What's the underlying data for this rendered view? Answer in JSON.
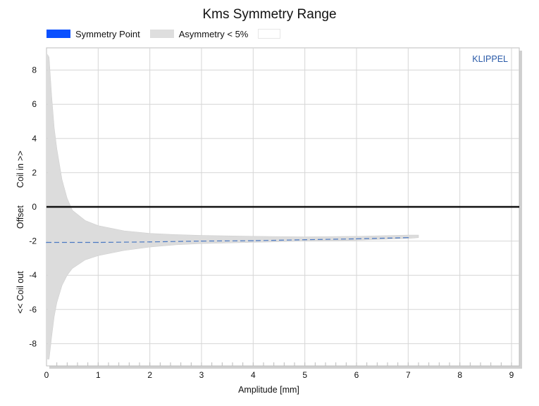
{
  "chart_data": {
    "type": "area",
    "title": "Kms Symmetry Range",
    "brand": "KLIPPEL",
    "xlabel": "Amplitude [mm]",
    "ylabel_parts": [
      "Coil in >>",
      "Offset",
      "<< Coil out"
    ],
    "xlim": [
      0,
      9.15
    ],
    "ylim": [
      -9.3,
      9.3
    ],
    "x_ticks": [
      0,
      1,
      2,
      3,
      4,
      5,
      6,
      7,
      8,
      9
    ],
    "y_ticks": [
      8,
      6,
      4,
      2,
      0,
      -2,
      -4,
      -6,
      -8
    ],
    "grid": true,
    "legend_position": "top-left",
    "legend": [
      {
        "label": "Symmetry Point",
        "color": "#0a50ff"
      },
      {
        "label": "Asymmetry < 5%",
        "color": "#dedede"
      },
      {
        "label": "",
        "color": "#ffffff"
      }
    ],
    "zero_line": 0,
    "series": [
      {
        "name": "Asymmetry < 5%",
        "kind": "band",
        "x": [
          0.02,
          0.05,
          0.1,
          0.15,
          0.2,
          0.3,
          0.4,
          0.5,
          0.75,
          1.0,
          1.5,
          2.0,
          2.5,
          3.0,
          4.0,
          5.0,
          6.0,
          7.0,
          7.2
        ],
        "upper": [
          8.9,
          8.75,
          6.5,
          4.6,
          3.4,
          1.6,
          0.5,
          -0.2,
          -0.8,
          -1.1,
          -1.4,
          -1.55,
          -1.62,
          -1.67,
          -1.72,
          -1.75,
          -1.72,
          -1.65,
          -1.65
        ],
        "lower": [
          -8.9,
          -8.9,
          -7.6,
          -6.4,
          -5.6,
          -4.6,
          -4.0,
          -3.6,
          -3.1,
          -2.85,
          -2.55,
          -2.35,
          -2.22,
          -2.15,
          -2.08,
          -2.0,
          -1.95,
          -1.85,
          -1.8
        ]
      },
      {
        "name": "Symmetry Point",
        "kind": "dashed-line",
        "x": [
          0,
          1,
          2,
          3,
          4,
          5,
          6,
          7
        ],
        "y": [
          -2.08,
          -2.08,
          -2.05,
          -2.0,
          -1.98,
          -1.92,
          -1.87,
          -1.8
        ]
      }
    ]
  }
}
